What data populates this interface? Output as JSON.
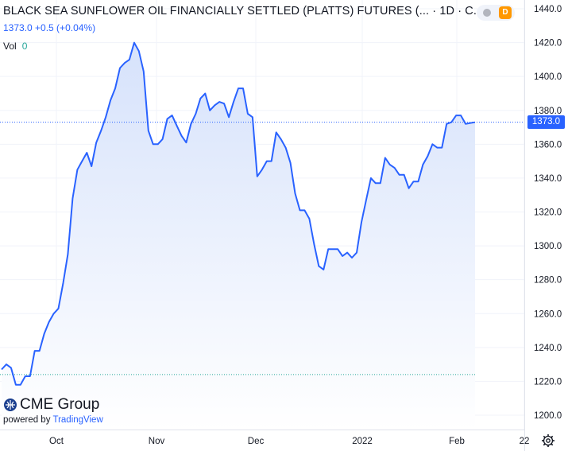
{
  "header": {
    "title": "BLACK SEA SUNFLOWER OIL FINANCIALLY SETTLED (PLATTS) FUTURES (...",
    "interval": "1D",
    "exchange_abbrev": "C...",
    "price_line": "1373.0  +0.5 (+0.04%)",
    "vol_label": "Vol",
    "vol_value": "0",
    "badge_letter": "D"
  },
  "branding": {
    "logo_text": "CME Group",
    "powered_by": "powered by",
    "powered_brand": "TradingView"
  },
  "price_tag": "1373.0",
  "colors": {
    "line": "#2962ff",
    "area_top": "#d6e2fb",
    "area_bottom": "#ffffff",
    "price_tag": "#2962ff",
    "ref_line": "#26a69a",
    "badge": "#ff9800"
  },
  "chart_data": {
    "type": "area",
    "ylim": [
      1195,
      1445
    ],
    "y_ticks": [
      1440,
      1420,
      1400,
      1380,
      1360,
      1340,
      1320,
      1300,
      1280,
      1260,
      1240,
      1220,
      1200
    ],
    "x_tick_labels": [
      "Oct",
      "Nov",
      "Dec",
      "2022",
      "Feb",
      "22"
    ],
    "last_value": 1373.0,
    "reference_value": 1224,
    "grid": true,
    "series": [
      {
        "values": [
          1227,
          1230,
          1228,
          1218,
          1218,
          1223,
          1223,
          1238,
          1238,
          1248,
          1255,
          1260,
          1263,
          1278,
          1295,
          1328,
          1345,
          1350,
          1355,
          1347,
          1361,
          1368,
          1376,
          1386,
          1393,
          1405,
          1408,
          1410,
          1420,
          1415,
          1403,
          1368,
          1360,
          1360,
          1363,
          1375,
          1377,
          1371,
          1365,
          1361,
          1372,
          1378,
          1387,
          1390,
          1380,
          1383,
          1385,
          1384,
          1376,
          1385,
          1393,
          1393,
          1378,
          1376,
          1341,
          1345,
          1350,
          1350,
          1367,
          1363,
          1358,
          1349,
          1331,
          1321,
          1321,
          1316,
          1301,
          1288,
          1286,
          1298,
          1298,
          1298,
          1294,
          1296,
          1293,
          1296,
          1314,
          1327,
          1340,
          1337,
          1337,
          1352,
          1348,
          1346,
          1342,
          1342,
          1334,
          1338,
          1338,
          1348,
          1353,
          1360,
          1358,
          1358,
          1372,
          1373,
          1377,
          1377,
          1372,
          1372.5,
          1373
        ]
      }
    ]
  }
}
